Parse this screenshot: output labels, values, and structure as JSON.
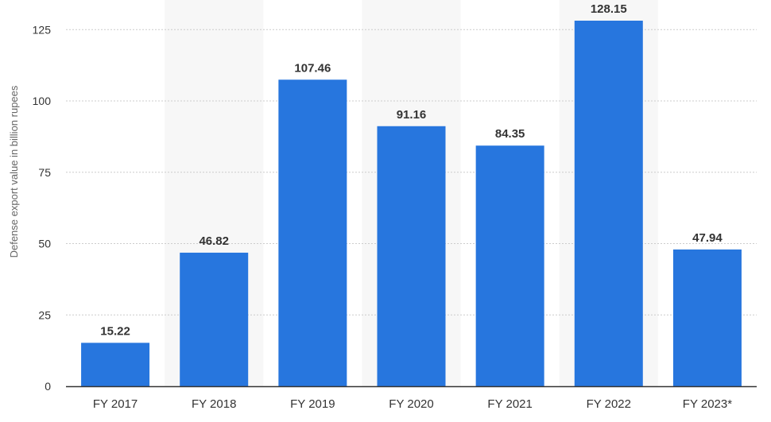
{
  "chart_data": {
    "type": "bar",
    "title": "",
    "xlabel": "",
    "ylabel": "Defense export value in billion rupees",
    "categories": [
      "FY 2017",
      "FY 2018",
      "FY 2019",
      "FY 2020",
      "FY 2021",
      "FY 2022",
      "FY 2023*"
    ],
    "values": [
      15.22,
      46.82,
      107.46,
      91.16,
      84.35,
      128.15,
      47.94
    ],
    "value_labels": [
      "15.22",
      "46.82",
      "107.46",
      "91.16",
      "84.35",
      "128.15",
      "47.94"
    ],
    "ylim": [
      0,
      128.15
    ],
    "yticks": [
      0,
      25,
      50,
      75,
      100,
      125
    ],
    "ytick_labels": [
      "0",
      "25",
      "50",
      "75",
      "100",
      "125"
    ],
    "grid": true,
    "legend": "none",
    "colors": {
      "bar": "#2776de",
      "alt_band": "#f7f7f7",
      "grid": "#cccccc",
      "axis": "#333333"
    }
  }
}
